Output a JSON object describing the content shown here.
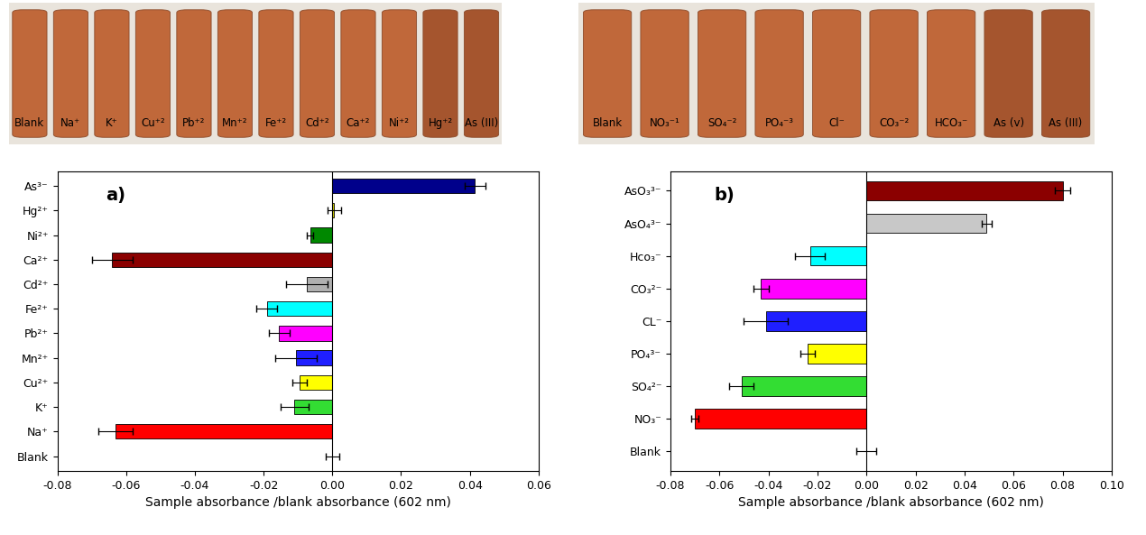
{
  "chart_data": [
    {
      "type": "bar",
      "orientation": "horizontal",
      "title": "a)",
      "x_label": "Sample absorbance /blank absorbance (602 nm)",
      "categories": [
        "Blank",
        "Na⁺",
        "K⁺",
        "Cu²⁺",
        "Mn²⁺",
        "Pb²⁺",
        "Fe²⁺",
        "Cd²⁺",
        "Ca²⁺",
        "Ni²⁺",
        "Hg²⁺",
        "As³⁻"
      ],
      "values": [
        0,
        -0.063,
        -0.011,
        -0.0095,
        -0.0105,
        -0.0155,
        -0.019,
        -0.0075,
        -0.064,
        -0.0065,
        0.0005,
        0.0415
      ],
      "errors": [
        0.002,
        0.005,
        0.004,
        0.002,
        0.006,
        0.003,
        0.003,
        0.006,
        0.006,
        0.001,
        0.002,
        0.003
      ],
      "colors": [
        "#ffffff",
        "#ff0000",
        "#33dd33",
        "#ffff00",
        "#1f1fff",
        "#ff00ff",
        "#00ffff",
        "#b0b0b0",
        "#8b0000",
        "#008800",
        "#cccc00",
        "#00008b"
      ],
      "xlim": [
        -0.08,
        0.06
      ],
      "xticks": [
        -0.08,
        -0.06,
        -0.04,
        -0.02,
        {
          "value": 0,
          "label": "0.00"
        },
        0.02,
        0.04,
        0.06
      ]
    },
    {
      "type": "bar",
      "orientation": "horizontal",
      "title": "b)",
      "x_label": "Sample absorbance /blank absorbance (602 nm)",
      "categories": [
        "Blank",
        "NO₃⁻",
        "SO₄²⁻",
        "PO₄³⁻",
        "CL⁻",
        "CO₃²⁻",
        "Hco₃⁻",
        "AsO₄³⁻",
        "AsO₃³⁻"
      ],
      "values": [
        0,
        -0.07,
        -0.051,
        -0.024,
        -0.041,
        -0.043,
        -0.023,
        0.049,
        0.08
      ],
      "errors": [
        0.004,
        0.0015,
        0.005,
        0.003,
        0.009,
        0.003,
        0.006,
        0.002,
        0.003
      ],
      "colors": [
        "#ffffff",
        "#ff0000",
        "#33dd33",
        "#ffff00",
        "#1f1fff",
        "#ff00ff",
        "#00ffff",
        "#c8c8c8",
        "#8b0000"
      ],
      "xlim": [
        -0.08,
        0.1
      ],
      "xticks": [
        -0.08,
        -0.06,
        -0.04,
        -0.02,
        {
          "value": 0,
          "label": "0.00"
        },
        0.02,
        0.04,
        0.06,
        0.08,
        {
          "value": 0.1,
          "label": "0.10"
        }
      ]
    }
  ],
  "photos": [
    {
      "labels": [
        "Blank",
        "Na⁺",
        "K⁺",
        "Cu⁺²",
        "Pb⁺²",
        "Mn⁺²",
        "Fe⁺²",
        "Cd⁺²",
        "Ca⁺²",
        "Ni⁺²",
        "Hg⁺²",
        "As (III)"
      ]
    },
    {
      "labels": [
        "Blank",
        "NO₃⁻¹",
        "SO₄⁻²",
        "PO₄⁻³",
        "Cl⁻",
        "CO₃⁻²",
        "HCO₃⁻",
        "As (v)",
        "As (III)"
      ]
    }
  ]
}
